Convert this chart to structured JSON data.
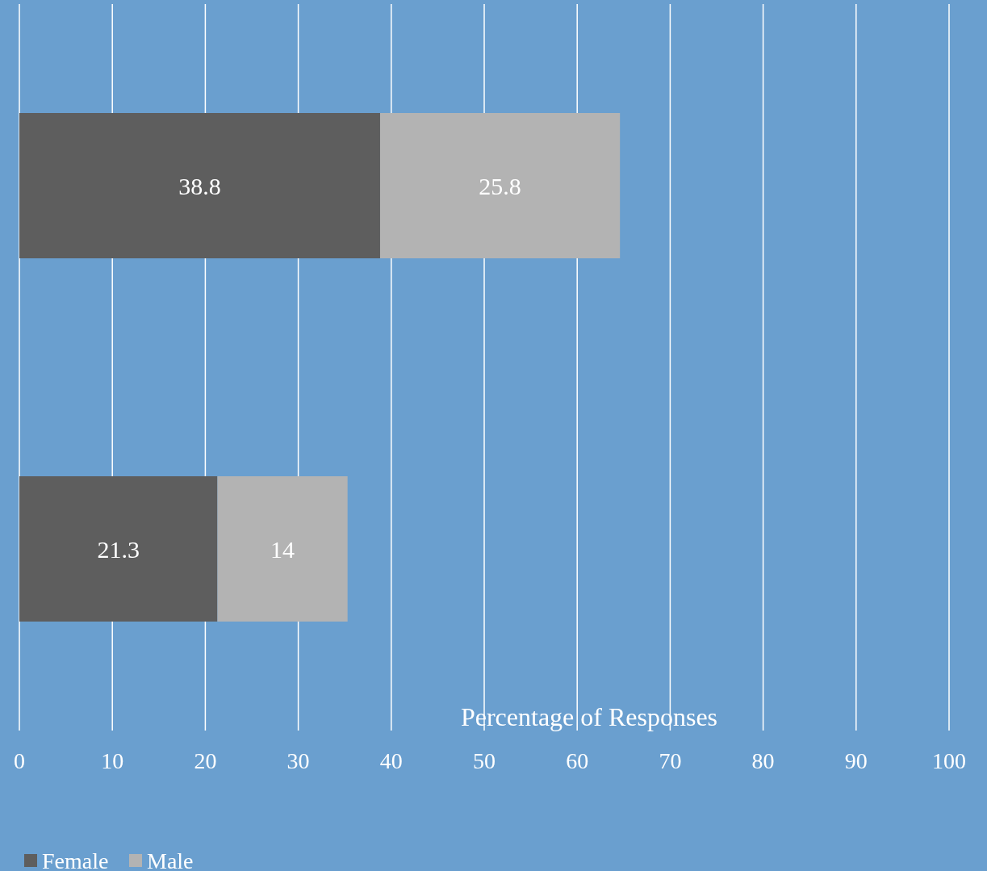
{
  "chart_data": {
    "type": "bar",
    "orientation": "horizontal",
    "stacked": true,
    "categories": [
      null,
      null
    ],
    "series": [
      {
        "name": "Female",
        "color": "#5e5e5e",
        "values": [
          38.8,
          21.3
        ]
      },
      {
        "name": "Male",
        "color": "#b3b3b3",
        "values": [
          25.8,
          14
        ]
      }
    ],
    "xlabel": "Percentage of Responses",
    "xlim": [
      0,
      100
    ],
    "xticks": [
      0,
      10,
      20,
      30,
      40,
      50,
      60,
      70,
      80,
      90,
      100
    ],
    "grid": "x",
    "data_labels": true,
    "legend": "bottom left"
  }
}
